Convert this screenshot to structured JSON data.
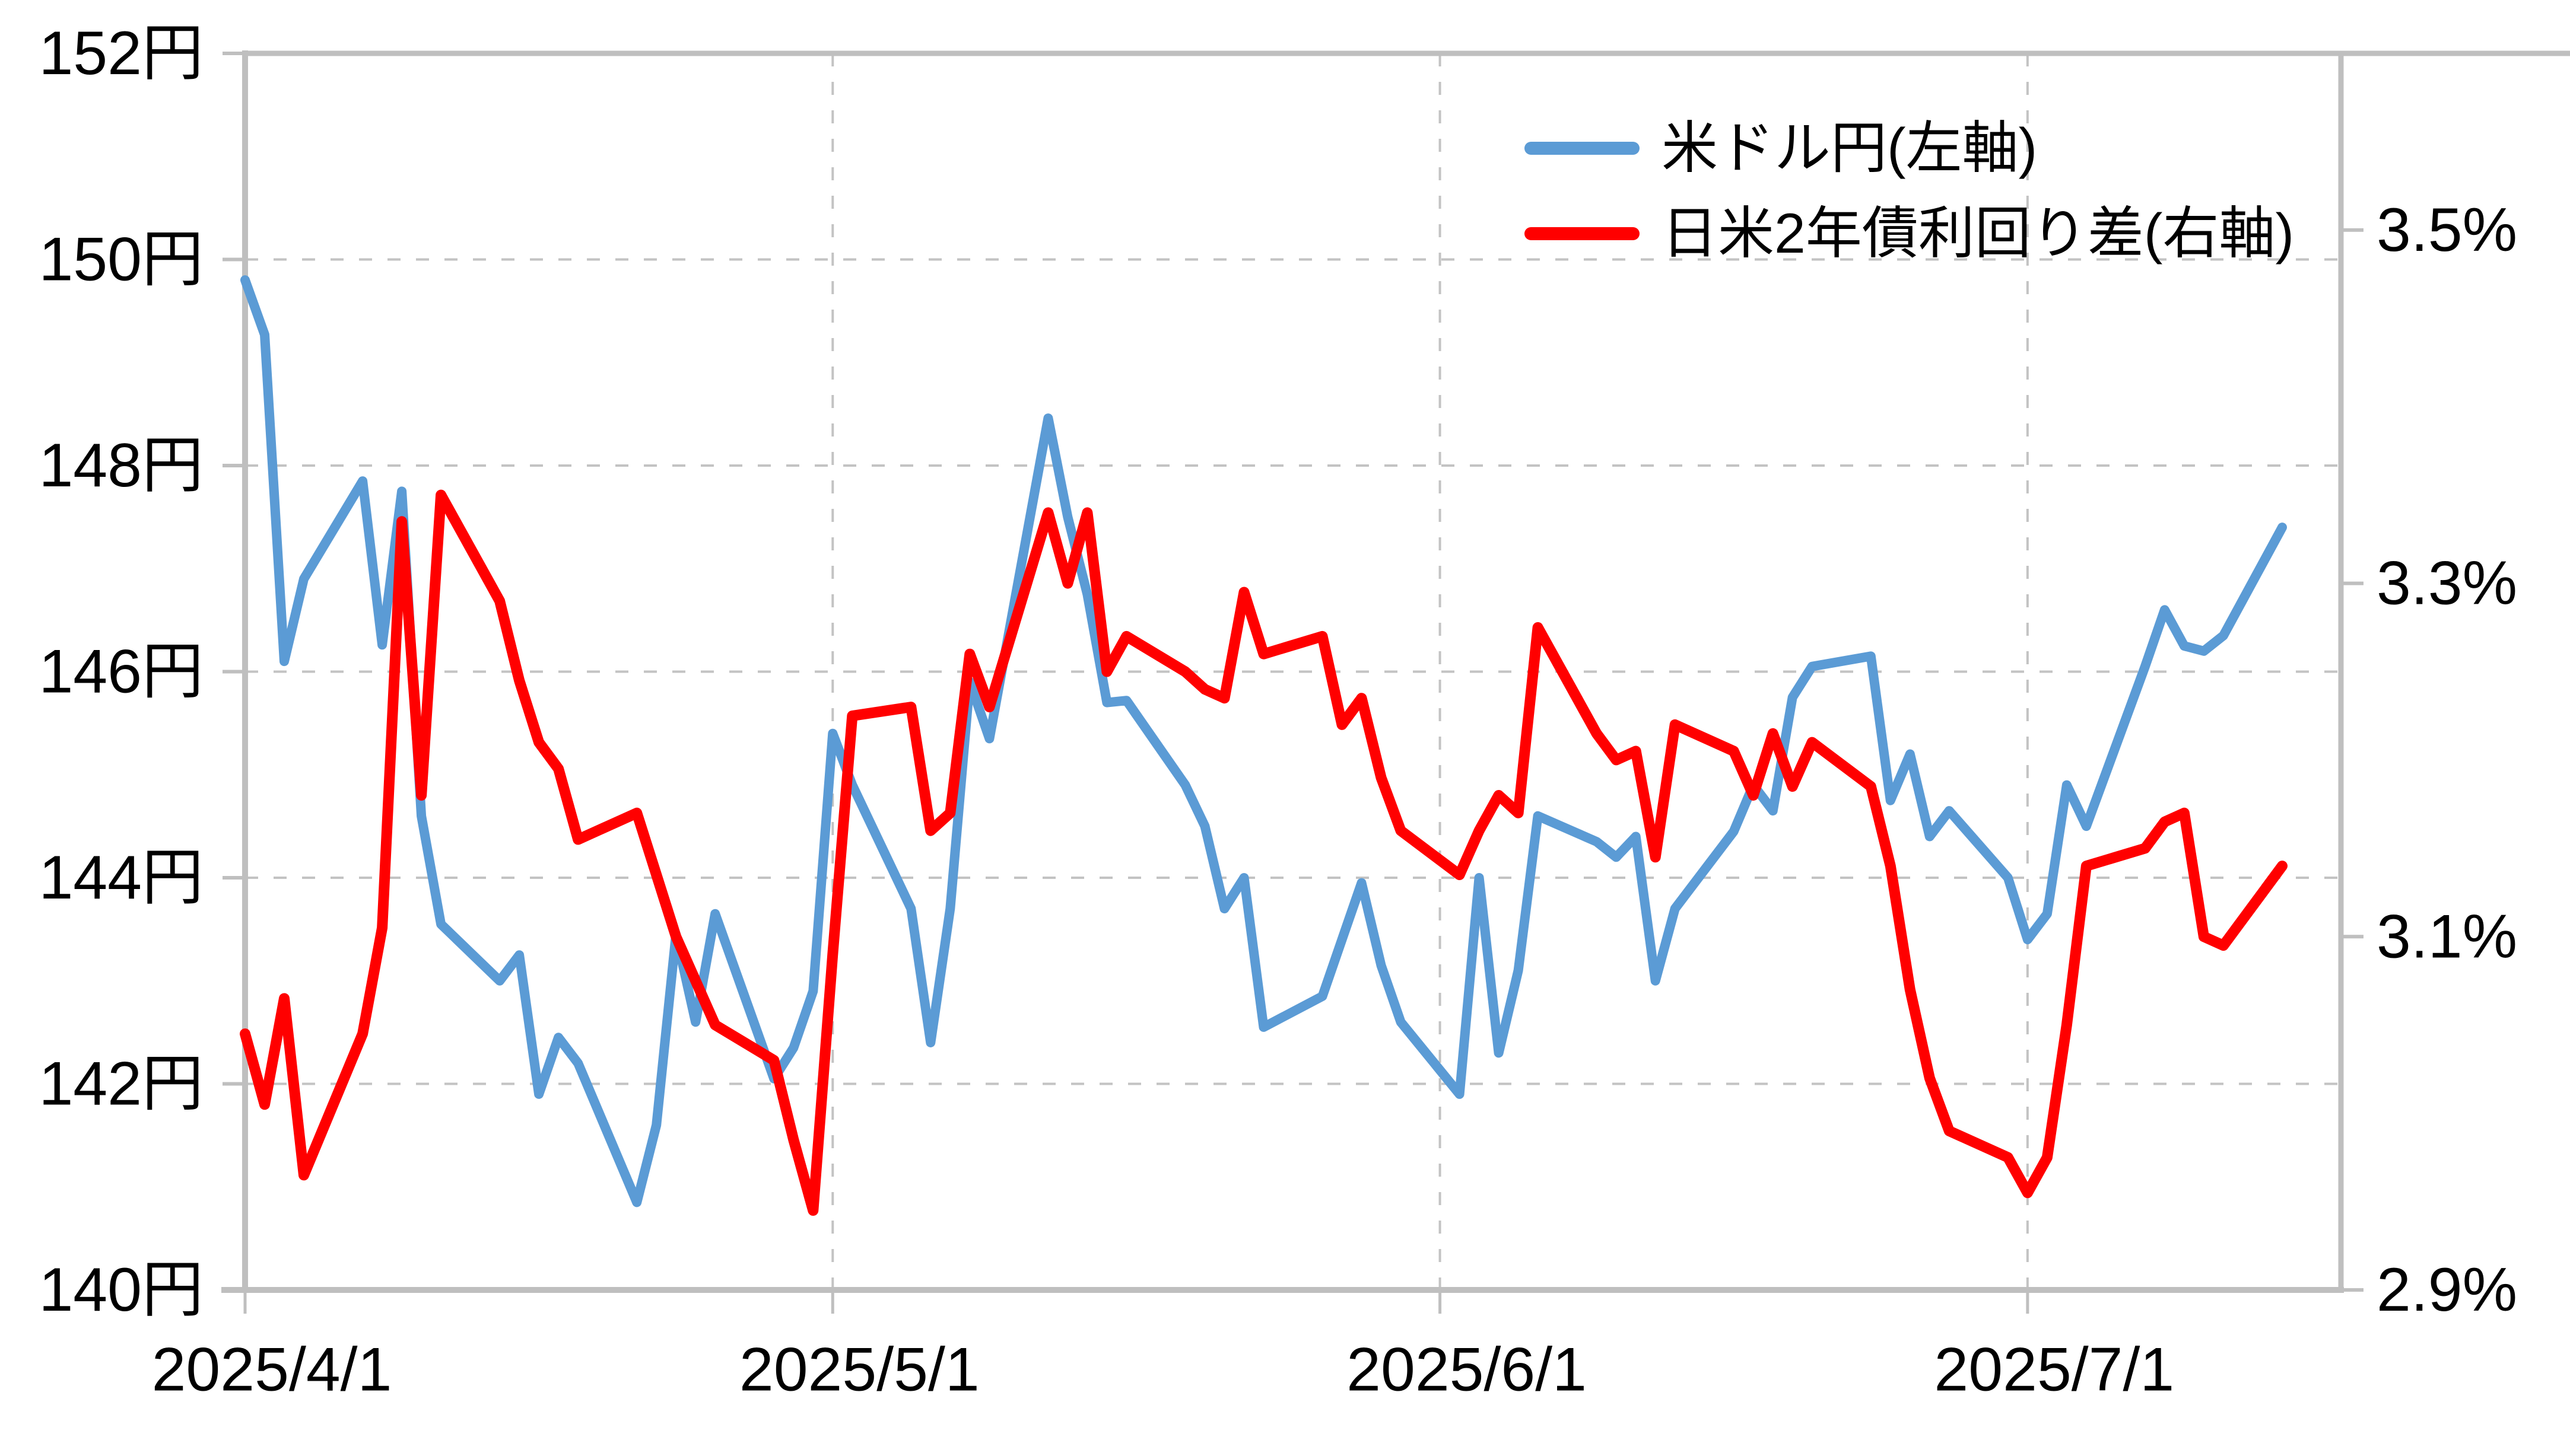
{
  "chart_data": {
    "type": "line",
    "title": "",
    "legend_position": "top-right-inside",
    "grid": {
      "horizontal": true,
      "vertical": true,
      "style": "dashed",
      "color": "#c3c3c3"
    },
    "frame_color": "#bfbfbf",
    "left_axis": {
      "unit": "円",
      "min": 140,
      "max": 152,
      "tick_values": [
        152,
        150,
        148,
        146,
        144,
        142,
        140
      ],
      "tick_labels": [
        "152円",
        "150円",
        "148円",
        "146円",
        "144円",
        "142円",
        "140円"
      ]
    },
    "right_axis": {
      "unit": "%",
      "min": 2.9,
      "max": 3.6,
      "tick_values": [
        3.5,
        3.3,
        3.1,
        2.9
      ],
      "tick_labels": [
        "3.5%",
        "3.3%",
        "3.1%",
        "2.9%"
      ]
    },
    "x_axis": {
      "max_day": 107,
      "tick_days": [
        0,
        30,
        61,
        91
      ],
      "tick_labels": [
        "2025/4/1",
        "2025/5/1",
        "2025/6/1",
        "2025/7/1"
      ]
    },
    "dates": [
      "2025/4/1",
      "2025/4/2",
      "2025/4/3",
      "2025/4/4",
      "2025/4/7",
      "2025/4/8",
      "2025/4/9",
      "2025/4/10",
      "2025/4/11",
      "2025/4/14",
      "2025/4/15",
      "2025/4/16",
      "2025/4/17",
      "2025/4/18",
      "2025/4/21",
      "2025/4/22",
      "2025/4/23",
      "2025/4/24",
      "2025/4/25",
      "2025/4/28",
      "2025/4/29",
      "2025/4/30",
      "2025/5/1",
      "2025/5/2",
      "2025/5/5",
      "2025/5/6",
      "2025/5/7",
      "2025/5/8",
      "2025/5/9",
      "2025/5/12",
      "2025/5/13",
      "2025/5/14",
      "2025/5/15",
      "2025/5/16",
      "2025/5/19",
      "2025/5/20",
      "2025/5/21",
      "2025/5/22",
      "2025/5/23",
      "2025/5/26",
      "2025/5/27",
      "2025/5/28",
      "2025/5/29",
      "2025/5/30",
      "2025/6/2",
      "2025/6/3",
      "2025/6/4",
      "2025/6/5",
      "2025/6/6",
      "2025/6/9",
      "2025/6/10",
      "2025/6/11",
      "2025/6/12",
      "2025/6/13",
      "2025/6/16",
      "2025/6/17",
      "2025/6/18",
      "2025/6/19",
      "2025/6/20",
      "2025/6/23",
      "2025/6/24",
      "2025/6/25",
      "2025/6/26",
      "2025/6/27",
      "2025/6/30",
      "2025/7/1",
      "2025/7/2",
      "2025/7/3",
      "2025/7/4",
      "2025/7/7",
      "2025/7/8",
      "2025/7/9",
      "2025/7/10",
      "2025/7/11",
      "2025/7/14"
    ],
    "x_days": [
      0,
      1,
      2,
      3,
      6,
      7,
      8,
      9,
      10,
      13,
      14,
      15,
      16,
      17,
      20,
      21,
      22,
      23,
      24,
      27,
      28,
      29,
      30,
      31,
      34,
      35,
      36,
      37,
      38,
      41,
      42,
      43,
      44,
      45,
      48,
      49,
      50,
      51,
      52,
      55,
      56,
      57,
      58,
      59,
      62,
      63,
      64,
      65,
      66,
      69,
      70,
      71,
      72,
      73,
      76,
      77,
      78,
      79,
      80,
      83,
      84,
      85,
      86,
      87,
      90,
      91,
      92,
      93,
      94,
      97,
      98,
      99,
      100,
      101,
      104
    ],
    "series": [
      {
        "name": "米ドル円(左軸)",
        "axis": "left",
        "color": "#5B9BD5",
        "stroke_width": 16,
        "values": [
          149.8,
          149.27,
          146.1,
          146.9,
          147.85,
          146.26,
          147.75,
          144.6,
          143.55,
          143.0,
          143.25,
          141.9,
          142.45,
          142.2,
          140.85,
          141.6,
          143.45,
          142.6,
          143.65,
          142.05,
          142.35,
          142.9,
          145.4,
          144.9,
          143.7,
          142.4,
          143.7,
          145.9,
          145.35,
          148.46,
          147.5,
          146.75,
          145.7,
          145.72,
          144.9,
          144.5,
          143.7,
          144.0,
          142.55,
          142.85,
          143.4,
          143.95,
          143.15,
          142.6,
          141.9,
          144.0,
          142.3,
          143.1,
          144.6,
          144.35,
          144.2,
          144.4,
          143.0,
          143.7,
          144.45,
          144.9,
          144.65,
          145.75,
          146.05,
          146.15,
          144.75,
          145.2,
          144.4,
          144.65,
          144.0,
          143.4,
          143.65,
          144.9,
          144.5,
          146.05,
          146.6,
          146.25,
          146.2,
          146.35,
          147.4
        ]
      },
      {
        "name": "日米2年債利回り差(右軸)",
        "axis": "right",
        "color": "#FF0000",
        "stroke_width": 18,
        "values": [
          3.045,
          3.005,
          3.065,
          2.965,
          3.045,
          3.105,
          3.335,
          3.18,
          3.35,
          3.29,
          3.245,
          3.21,
          3.195,
          3.155,
          3.17,
          3.135,
          3.1,
          3.075,
          3.05,
          3.03,
          2.985,
          2.945,
          3.09,
          3.225,
          3.23,
          3.16,
          3.17,
          3.26,
          3.23,
          3.34,
          3.3,
          3.34,
          3.25,
          3.27,
          3.25,
          3.24,
          3.235,
          3.295,
          3.26,
          3.27,
          3.22,
          3.235,
          3.19,
          3.16,
          3.135,
          3.16,
          3.18,
          3.17,
          3.275,
          3.215,
          3.2,
          3.205,
          3.145,
          3.22,
          3.205,
          3.18,
          3.215,
          3.185,
          3.21,
          3.185,
          3.14,
          3.07,
          3.02,
          2.99,
          2.975,
          2.955,
          2.975,
          3.05,
          3.14,
          3.15,
          3.165,
          3.17,
          3.1,
          3.095,
          3.14
        ]
      }
    ]
  }
}
